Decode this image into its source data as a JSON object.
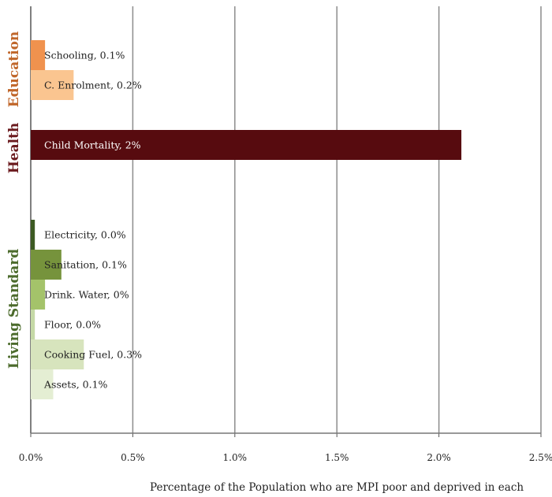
{
  "chart_data": {
    "type": "bar",
    "orientation": "horizontal",
    "xlabel": "Percentage of the Population who are MPI poor and deprived in each",
    "xlim": [
      0,
      2.5
    ],
    "x_ticks": [
      "0.0%",
      "0.5%",
      "1.0%",
      "1.5%",
      "2.0%",
      "2.5%"
    ],
    "grid": true,
    "groups": [
      {
        "name": "Education",
        "color": "#c0662a",
        "bars": [
          {
            "label": "Schooling, 0.1%",
            "value": 0.07,
            "color": "#f0924e"
          },
          {
            "label": "C. Enrolment, 0.2%",
            "value": 0.21,
            "color": "#fac590"
          }
        ]
      },
      {
        "name": "Health",
        "color": "#6b1a1e",
        "bars": [
          {
            "label": "Child Mortality, 2%",
            "value": 2.11,
            "color": "#570b0f"
          }
        ]
      },
      {
        "name": "Living Standard",
        "color": "#4c6b2c",
        "bars": [
          {
            "label": "Electricity, 0.0%",
            "value": 0.02,
            "color": "#3c5a22"
          },
          {
            "label": "Sanitation, 0.1%",
            "value": 0.15,
            "color": "#76933c"
          },
          {
            "label": "Drink. Water, 0%",
            "value": 0.07,
            "color": "#a4c36a"
          },
          {
            "label": "Floor, 0.0%",
            "value": 0.02,
            "color": "#c5d9a6"
          },
          {
            "label": "Cooking Fuel, 0.3%",
            "value": 0.26,
            "color": "#d7e4bd"
          },
          {
            "label": "Assets, 0.1%",
            "value": 0.11,
            "color": "#e4eed3"
          }
        ]
      }
    ]
  }
}
